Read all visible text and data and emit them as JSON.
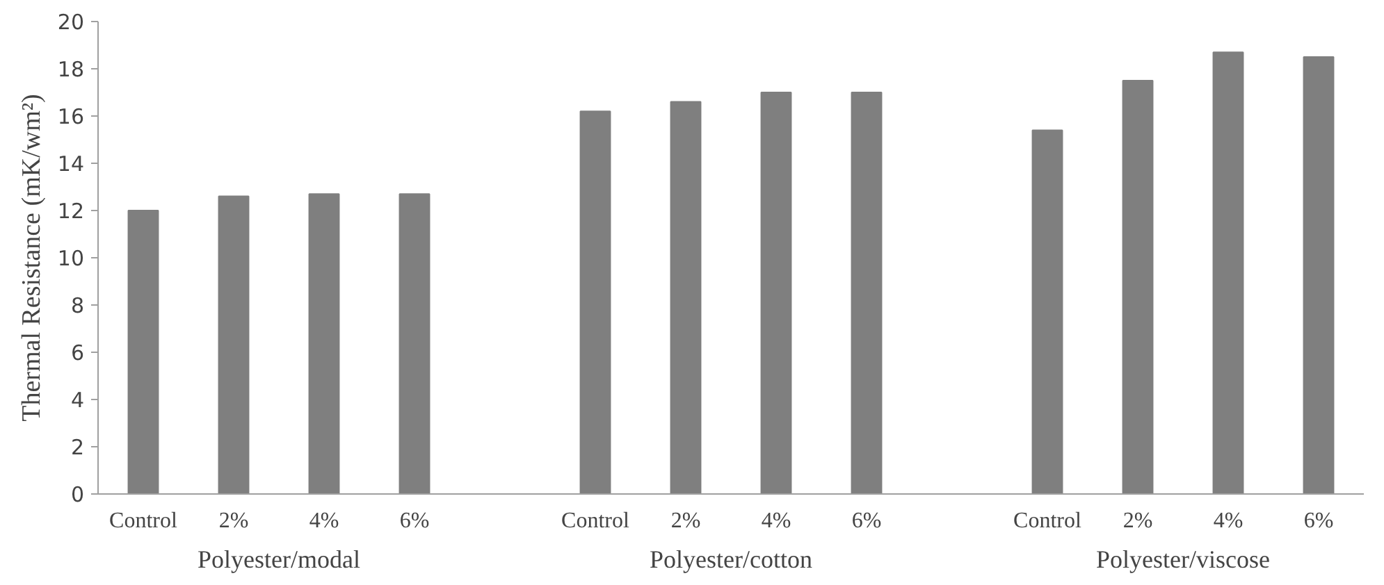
{
  "chart_data": {
    "type": "bar",
    "ylabel": "Thermal Resistance (mK/wm²)",
    "categories": [
      "Control",
      "2%",
      "4%",
      "6%",
      "Control",
      "2%",
      "4%",
      "6%",
      "Control",
      "2%",
      "4%",
      "6%"
    ],
    "values": [
      12.0,
      12.6,
      12.7,
      12.7,
      16.2,
      16.6,
      17.0,
      17.0,
      15.4,
      17.5,
      18.7,
      18.5
    ],
    "color": "#7f7f7f",
    "ylim": [
      0,
      20
    ],
    "yticks": [
      0,
      2,
      4,
      6,
      8,
      10,
      12,
      14,
      16,
      18,
      20
    ],
    "grid": false,
    "annotations": [
      "Polyester/modal",
      "Polyester/cotton",
      "Polyester/viscose"
    ]
  }
}
